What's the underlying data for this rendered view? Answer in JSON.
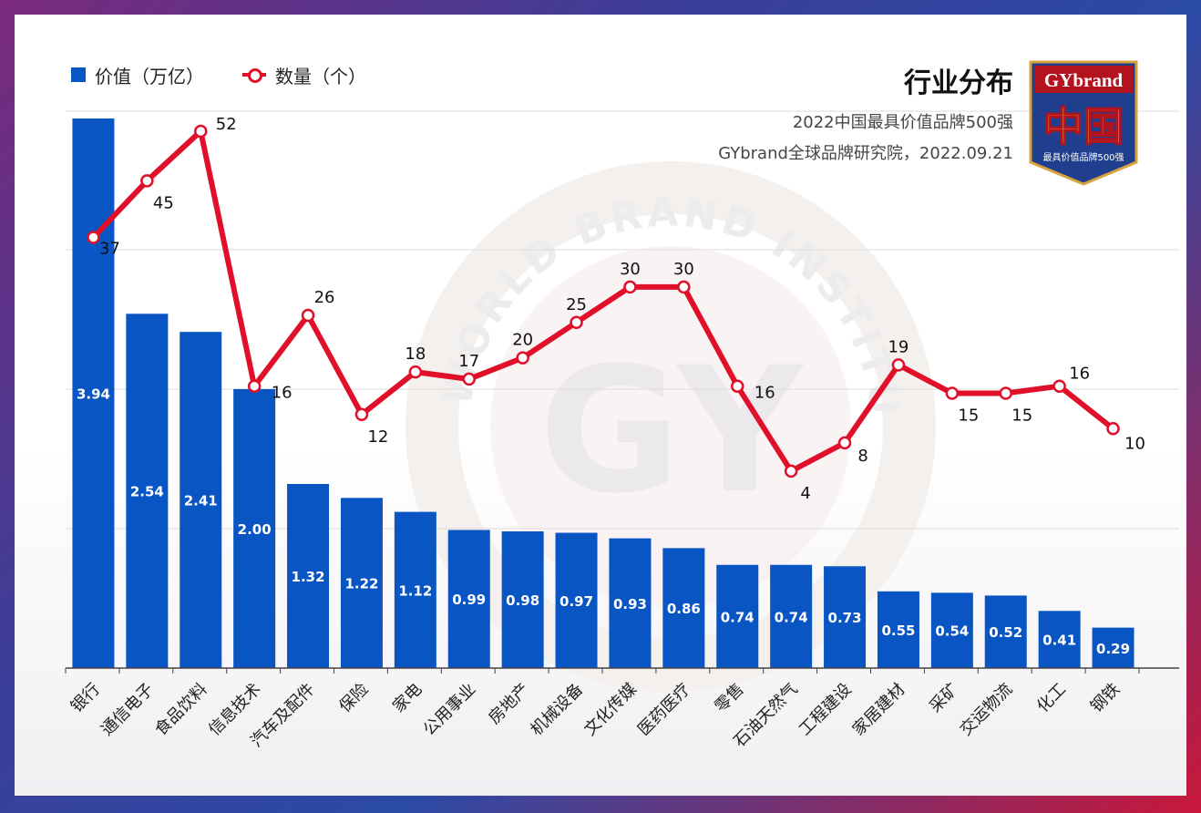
{
  "title": "行业分布",
  "subtitle1": "2022中国最具价值品牌500强",
  "subtitle2": "GYbrand全球品牌研究院，2022.09.21",
  "badge": {
    "top_text": "GYbrand",
    "main_text": "中国",
    "bottom_text": "最具价值品牌500强"
  },
  "watermark": {
    "ring_text": "WORLD BRAND INSTITUTE",
    "center_text": "GY"
  },
  "colors": {
    "bar": "#0a55c4",
    "line": "#e0102a",
    "badge_bg": "#1f3f8e",
    "badge_red": "#b3121f",
    "badge_gold": "#d9a23a"
  },
  "chart_data": {
    "type": "bar",
    "categories": [
      "银行",
      "通信电子",
      "食品饮料",
      "信息技术",
      "汽车及配件",
      "保险",
      "家电",
      "公用事业",
      "房地产",
      "机械设备",
      "文化传媒",
      "医药医疗",
      "零售",
      "石油天然气",
      "工程建设",
      "家居建材",
      "采矿",
      "交运物流",
      "化工",
      "钢铁"
    ],
    "series": [
      {
        "name": "价值（万亿）",
        "type": "bar",
        "values": [
          3.94,
          2.54,
          2.41,
          2.0,
          1.32,
          1.22,
          1.12,
          0.99,
          0.98,
          0.97,
          0.93,
          0.86,
          0.74,
          0.74,
          0.73,
          0.55,
          0.54,
          0.52,
          0.41,
          0.29
        ]
      },
      {
        "name": "数量（个）",
        "type": "line",
        "values": [
          37,
          45,
          52,
          16,
          26,
          12,
          18,
          17,
          20,
          25,
          30,
          30,
          16,
          4,
          8,
          19,
          15,
          15,
          16,
          10
        ]
      }
    ],
    "grid": true,
    "legend": "top-left"
  }
}
